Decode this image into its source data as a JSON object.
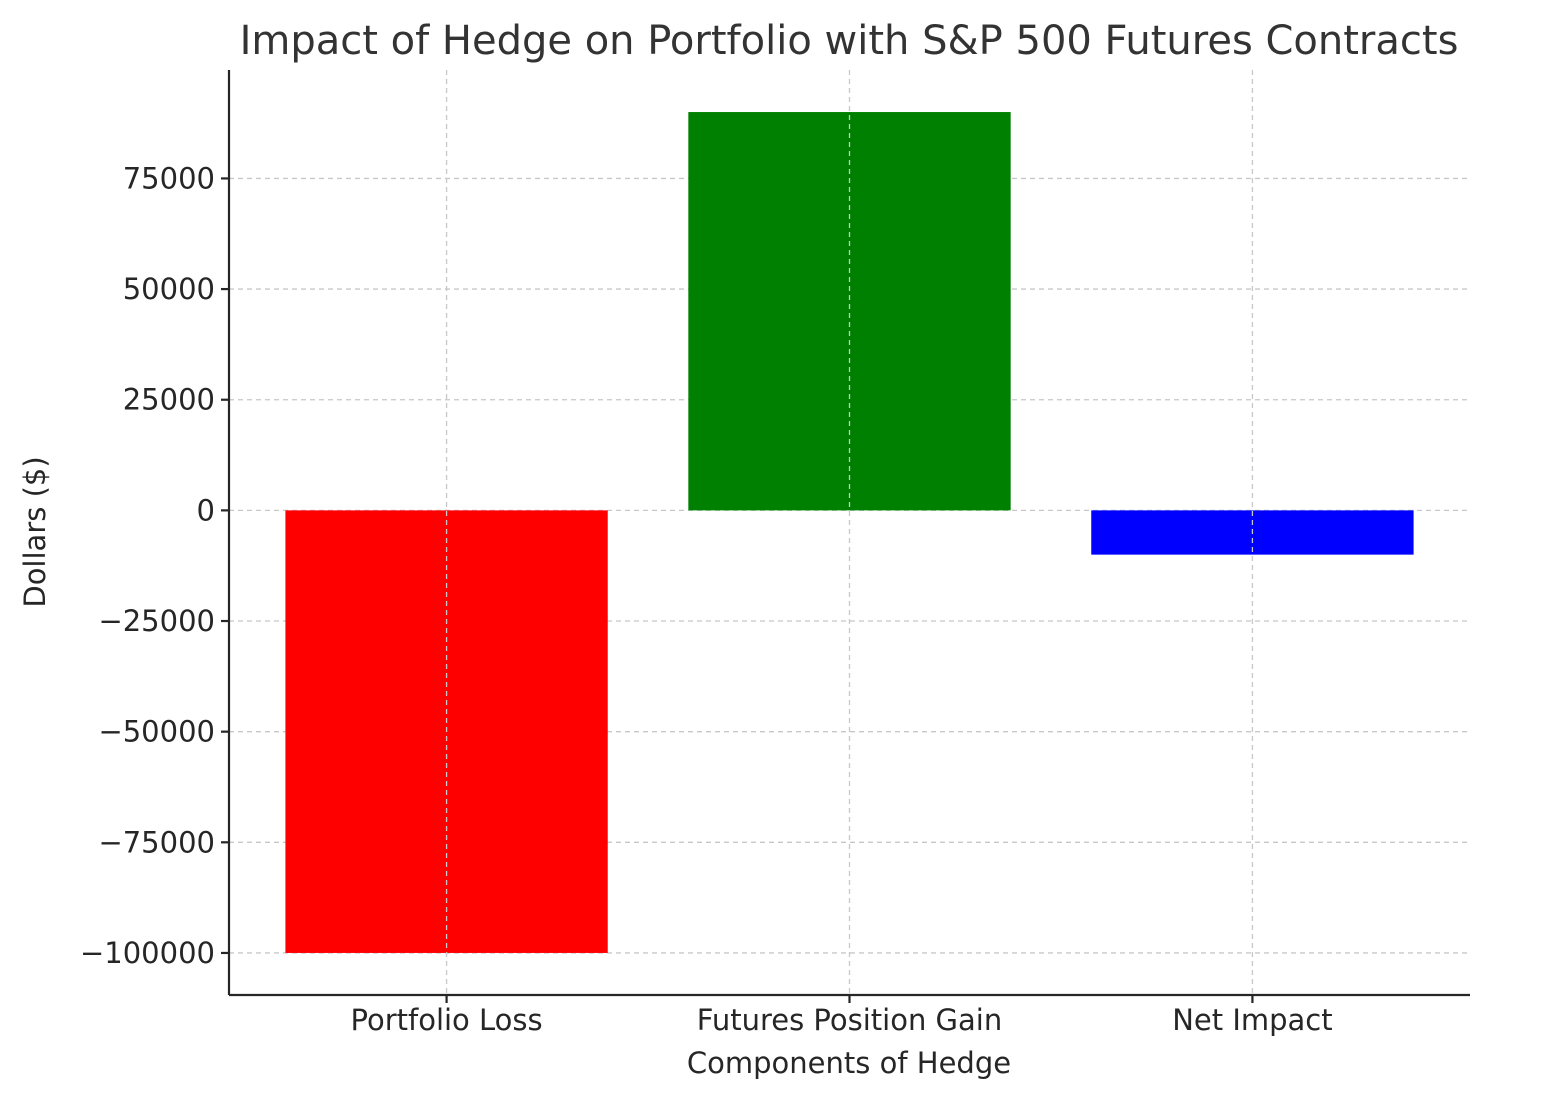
{
  "chart_data": {
    "type": "bar",
    "title": "Impact of Hedge on Portfolio with S&P 500 Futures Contracts",
    "xlabel": "Components of Hedge",
    "ylabel": "Dollars ($)",
    "categories": [
      "Portfolio Loss",
      "Futures Position Gain",
      "Net Impact"
    ],
    "values": [
      -100000,
      90000,
      -10000
    ],
    "colors": [
      "#ff0000",
      "#008000",
      "#0000ff"
    ],
    "ylim": [
      -109500,
      99500
    ],
    "yticks": [
      75000,
      50000,
      25000,
      0,
      -25000,
      -50000,
      -75000,
      -100000
    ],
    "ytick_labels": [
      "75000",
      "50000",
      "25000",
      "0",
      "−25000",
      "−50000",
      "−75000",
      "−100000"
    ],
    "grid": true
  }
}
